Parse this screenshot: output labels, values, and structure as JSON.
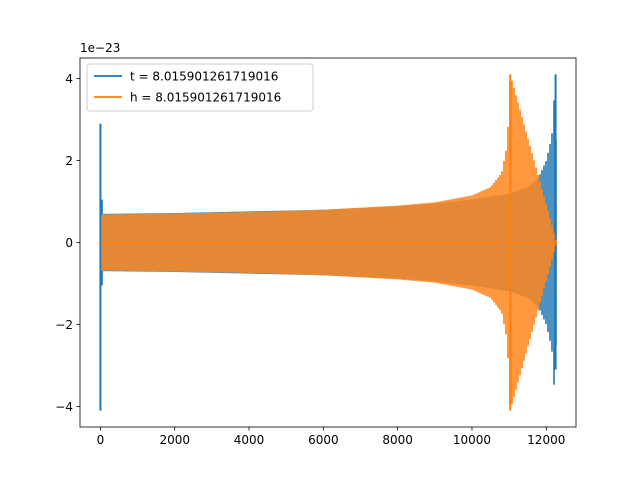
{
  "chart_data": {
    "type": "line",
    "title": "",
    "xlabel": "",
    "ylabel": "",
    "y_offset_label": "1e−23",
    "xlim": [
      -550,
      12800
    ],
    "ylim": [
      -4.5,
      4.5
    ],
    "x_ticks": [
      0,
      2000,
      4000,
      6000,
      8000,
      10000,
      12000
    ],
    "x_tick_labels": [
      "0",
      "2000",
      "4000",
      "6000",
      "8000",
      "10000",
      "12000"
    ],
    "y_ticks": [
      -4,
      -2,
      0,
      2,
      4
    ],
    "y_tick_labels": [
      "−4",
      "−2",
      "0",
      "2",
      "4"
    ],
    "grid": false,
    "legend_position": "top-left",
    "series": [
      {
        "name": "t = 8.015901261719016",
        "color": "#1f77b4",
        "samples": [
          {
            "x": 0,
            "amp": 2.9,
            "low": -4.1
          },
          {
            "x": 50,
            "amp": 0.7
          },
          {
            "x": 2000,
            "amp": 0.72
          },
          {
            "x": 4000,
            "amp": 0.76
          },
          {
            "x": 6000,
            "amp": 0.8
          },
          {
            "x": 8000,
            "amp": 0.88
          },
          {
            "x": 9000,
            "amp": 0.95
          },
          {
            "x": 10000,
            "amp": 1.05
          },
          {
            "x": 11050,
            "amp": 1.2
          },
          {
            "x": 11500,
            "amp": 1.35
          },
          {
            "x": 11800,
            "amp": 1.6
          },
          {
            "x": 12000,
            "amp": 2.0
          },
          {
            "x": 12150,
            "amp": 2.6
          },
          {
            "x": 12250,
            "amp": 4.1,
            "low": -3.1
          },
          {
            "x": 12280,
            "amp": 0
          }
        ]
      },
      {
        "name": "h = 8.015901261719016",
        "color": "#ff7f0e",
        "samples": [
          {
            "x": 0,
            "amp": 0.68
          },
          {
            "x": 2000,
            "amp": 0.71
          },
          {
            "x": 4000,
            "amp": 0.74
          },
          {
            "x": 6000,
            "amp": 0.8
          },
          {
            "x": 8000,
            "amp": 0.9
          },
          {
            "x": 9000,
            "amp": 0.98
          },
          {
            "x": 10000,
            "amp": 1.15
          },
          {
            "x": 10500,
            "amp": 1.35
          },
          {
            "x": 10800,
            "amp": 1.7
          },
          {
            "x": 10950,
            "amp": 2.4
          },
          {
            "x": 11030,
            "amp": 4.1,
            "low": -4.1
          },
          {
            "x": 12280,
            "amp": 0
          }
        ]
      }
    ]
  }
}
